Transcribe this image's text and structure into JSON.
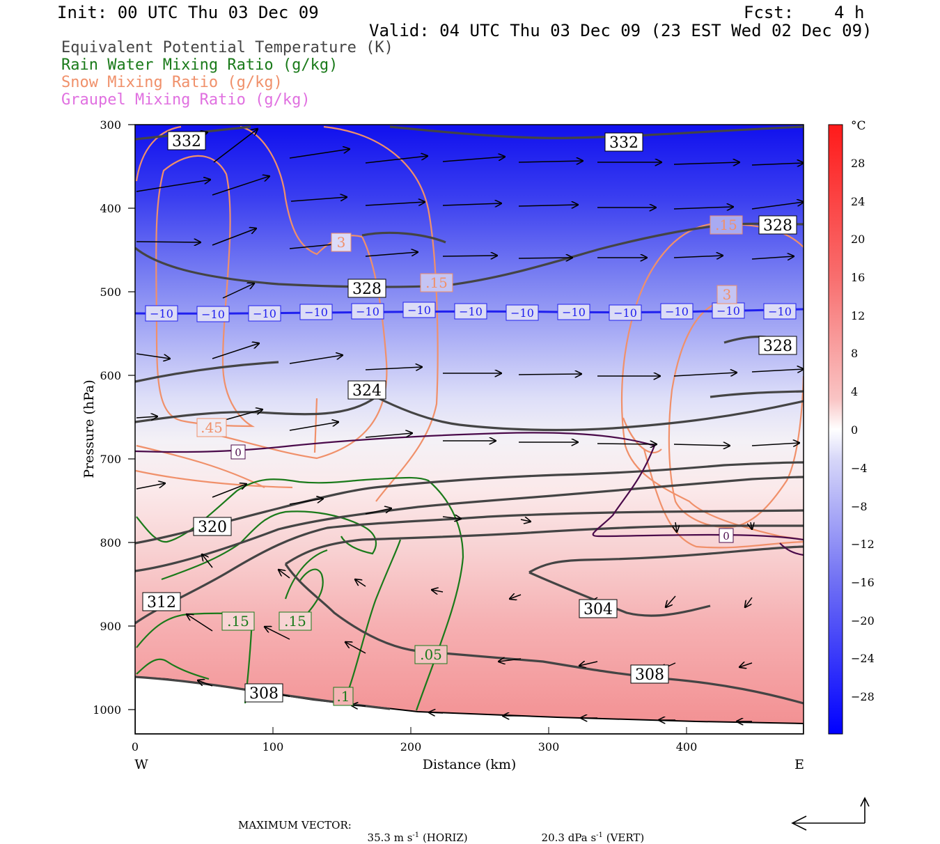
{
  "header": {
    "init": "Init: 00 UTC Thu 03 Dec 09",
    "fcst": "Fcst:    4 h",
    "valid": "Valid: 04 UTC Thu 03 Dec 09 (23 EST Wed 02 Dec 09)",
    "legend": [
      {
        "label": "Equivalent Potential Temperature (K)",
        "color": "#444444"
      },
      {
        "label": "Rain Water Mixing Ratio (g/kg)",
        "color": "#1a7a1a"
      },
      {
        "label": "Snow Mixing Ratio (g/kg)",
        "color": "#f0906a"
      },
      {
        "label": "Graupel Mixing Ratio (g/kg)",
        "color": "#e070e0"
      }
    ]
  },
  "chart_data": {
    "type": "heatmap",
    "xlabel": "Distance (km)",
    "ylabel": "Pressure (hPa)",
    "xlim": [
      0,
      485
    ],
    "ylim": [
      1030,
      300
    ],
    "x_ticks": [
      "0",
      "100",
      "200",
      "300",
      "400"
    ],
    "x_tick_values": [
      0,
      100,
      200,
      300,
      400
    ],
    "y_ticks": [
      "300",
      "400",
      "500",
      "600",
      "700",
      "800",
      "900",
      "1000"
    ],
    "y_tick_values": [
      300,
      400,
      500,
      600,
      700,
      800,
      900,
      1000
    ],
    "west_label": "W",
    "east_label": "E",
    "colorbar": {
      "unit": "°C",
      "ticks": [
        "28",
        "24",
        "20",
        "16",
        "12",
        "8",
        "4",
        "0",
        "−4",
        "−8",
        "−12",
        "−16",
        "−20",
        "−24",
        "−28"
      ],
      "tick_values": [
        28,
        24,
        20,
        16,
        12,
        8,
        4,
        0,
        -4,
        -8,
        -12,
        -16,
        -20,
        -24,
        -28
      ],
      "range": [
        -32,
        32
      ]
    },
    "theta_e_labels": [
      "332",
      "332",
      "328",
      "328",
      "328",
      "324",
      "320",
      "312",
      "304",
      "308",
      "308"
    ],
    "rain_labels": [
      ".15",
      ".15",
      ".05",
      ".1"
    ],
    "snow_labels": [
      "3",
      ".15",
      ".15",
      "3",
      ".45"
    ],
    "temp_labels": [
      "−10",
      "−10",
      "−10",
      "−10",
      "−10",
      "−10",
      "−10",
      "−10",
      "−10",
      "−10",
      "−10",
      "−10",
      "−10",
      "0",
      "0"
    ],
    "series": [
      {
        "name": "Equivalent Potential Temperature (K)",
        "color": "#444444"
      },
      {
        "name": "Rain Water Mixing Ratio (g/kg)",
        "color": "#1a7a1a"
      },
      {
        "name": "Snow Mixing Ratio (g/kg)",
        "color": "#f0906a"
      },
      {
        "name": "Graupel Mixing Ratio (g/kg)",
        "color": "#e070e0"
      }
    ]
  },
  "footer": {
    "max_label": "MAXIMUM VECTOR:",
    "horiz_value": "35.3 m s",
    "horiz_exp": "-1",
    "horiz_tag": "(HORIZ)",
    "vert_value": "20.3 dPa s",
    "vert_exp": "-1",
    "vert_tag": "(VERT)"
  }
}
